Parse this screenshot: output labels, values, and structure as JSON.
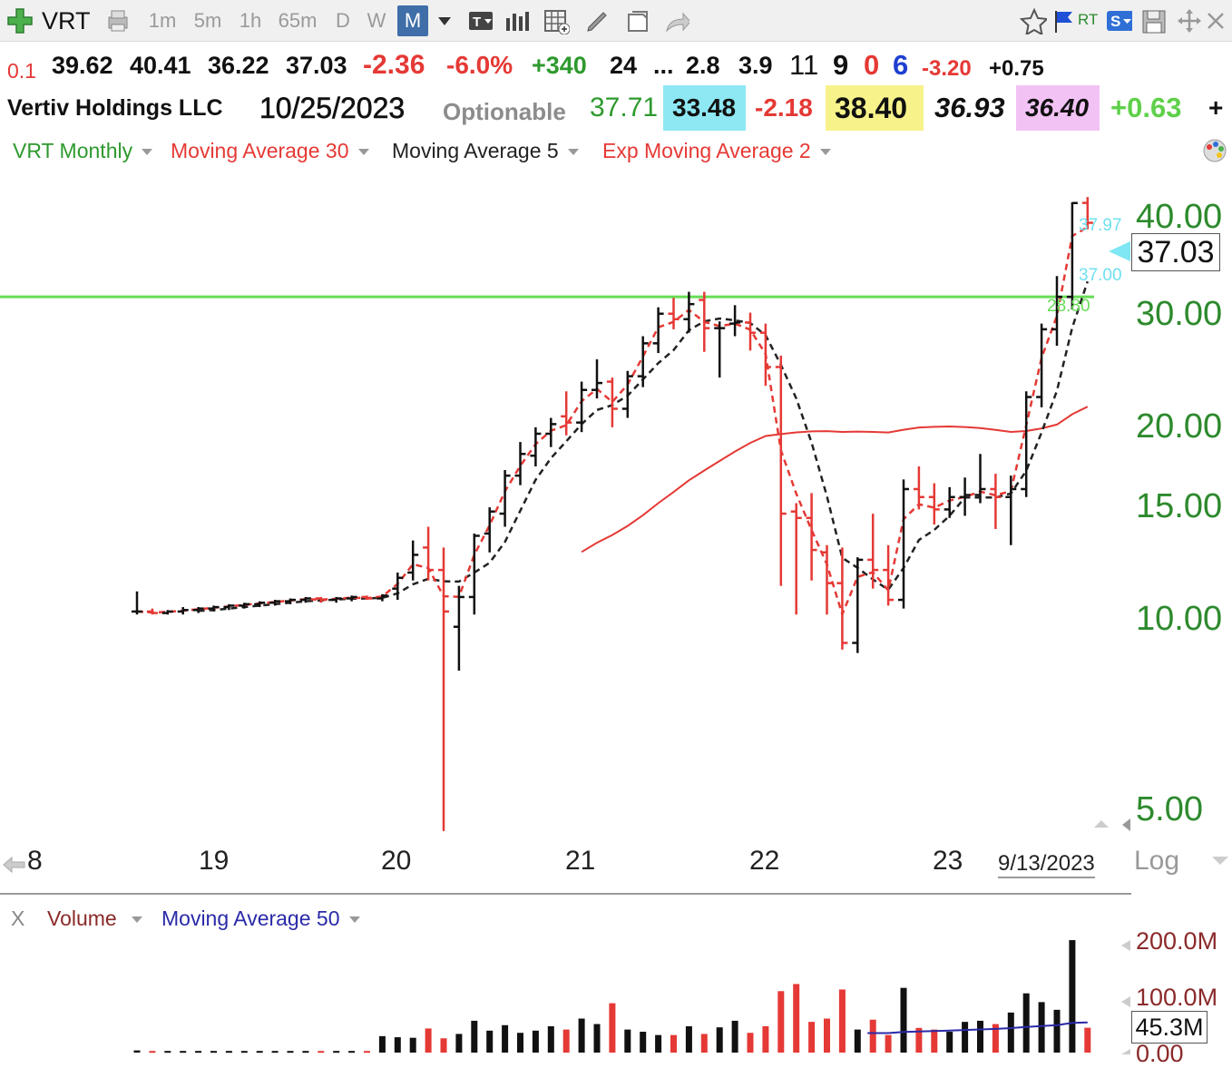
{
  "toolbar": {
    "symbol": "VRT",
    "intervals": [
      "1m",
      "5m",
      "1h",
      "65m",
      "D",
      "W",
      "M"
    ],
    "active_interval": "M",
    "rt_label": "RT",
    "s_label": "S"
  },
  "quote": {
    "row1": {
      "change_small": "0.1",
      "open": "39.62",
      "high": "40.41",
      "low": "36.22",
      "close": "37.03",
      "change": "-2.36",
      "change_pct": "-6.0%",
      "plus": "+340",
      "v1": "24",
      "ellipsis": "...",
      "v2": "2.8",
      "v3": "3.9",
      "v4": "11",
      "v5": "9",
      "v6": "0",
      "v7": "6",
      "v8": "-3.20",
      "v9": "+0.75"
    },
    "row2": {
      "name": "Vertiv Holdings LLC",
      "date": "10/25/2023",
      "optionable": "Optionable",
      "val1": "37.71",
      "val2": "33.48",
      "val3": "-2.18",
      "val4": "38.40",
      "val5": "36.93",
      "val6": "36.40",
      "val7": "+0.63",
      "plus": "+"
    },
    "colors": {
      "cyan_bg": "#8ee8f4",
      "yellow_bg": "#f7f28a",
      "pink_bg": "#f2c2f5"
    }
  },
  "legend": {
    "symbol_period": "VRT Monthly",
    "ma30": "Moving Average 30",
    "ma5": "Moving Average 5",
    "ema2": "Exp Moving Average 2"
  },
  "volume_legend": {
    "close": "X",
    "volume": "Volume",
    "ma50": "Moving Average 50"
  },
  "chart_data": {
    "type": "ohlc",
    "scale": "log",
    "ylim": [
      4.8,
      43
    ],
    "y_ticks": [
      "40.00",
      "30.00",
      "20.00",
      "15.00",
      "10.00",
      "5.00"
    ],
    "y_tick_values": [
      40,
      30,
      20,
      15,
      10,
      5
    ],
    "x_ticks": [
      "8",
      "19",
      "20",
      "21",
      "22",
      "23"
    ],
    "x_tick_index": [
      -5.3,
      4.7,
      16.7,
      28.7,
      40.7,
      52.7
    ],
    "last_date_label": "9/13/2023",
    "scale_label": "Log",
    "current_price": "37.03",
    "tags": {
      "high": "37.97",
      "low": "37.00",
      "line": "28.80"
    },
    "line_level": 28.8,
    "colors": {
      "up": "#111111",
      "down": "#e53935",
      "ma30": "#e53935",
      "ma5": "#222222",
      "ema2": "#e53935",
      "line": "#66dd55",
      "ma50vol": "#2a2aa8"
    },
    "bars": [
      {
        "o": 9.9,
        "h": 10.6,
        "l": 9.8,
        "c": 9.9,
        "v": 4
      },
      {
        "o": 9.9,
        "h": 10.0,
        "l": 9.8,
        "c": 9.85,
        "v": 3
      },
      {
        "o": 9.85,
        "h": 9.95,
        "l": 9.8,
        "c": 9.9,
        "v": 3
      },
      {
        "o": 9.9,
        "h": 10.05,
        "l": 9.8,
        "c": 9.95,
        "v": 3
      },
      {
        "o": 9.95,
        "h": 10.05,
        "l": 9.85,
        "c": 10.0,
        "v": 3
      },
      {
        "o": 10.0,
        "h": 10.1,
        "l": 9.9,
        "c": 10.05,
        "v": 3
      },
      {
        "o": 10.05,
        "h": 10.15,
        "l": 9.95,
        "c": 10.1,
        "v": 3
      },
      {
        "o": 10.1,
        "h": 10.2,
        "l": 10.0,
        "c": 10.15,
        "v": 3
      },
      {
        "o": 10.15,
        "h": 10.25,
        "l": 10.05,
        "c": 10.2,
        "v": 3
      },
      {
        "o": 10.2,
        "h": 10.3,
        "l": 10.1,
        "c": 10.25,
        "v": 3
      },
      {
        "o": 10.25,
        "h": 10.35,
        "l": 10.15,
        "c": 10.3,
        "v": 3
      },
      {
        "o": 10.3,
        "h": 10.4,
        "l": 10.2,
        "c": 10.35,
        "v": 3
      },
      {
        "o": 10.35,
        "h": 10.4,
        "l": 10.2,
        "c": 10.3,
        "v": 3
      },
      {
        "o": 10.3,
        "h": 10.4,
        "l": 10.2,
        "c": 10.35,
        "v": 3
      },
      {
        "o": 10.35,
        "h": 10.45,
        "l": 10.25,
        "c": 10.4,
        "v": 3
      },
      {
        "o": 10.4,
        "h": 10.45,
        "l": 10.3,
        "c": 10.35,
        "v": 3
      },
      {
        "o": 10.35,
        "h": 10.5,
        "l": 10.25,
        "c": 10.45,
        "v": 30
      },
      {
        "o": 10.7,
        "h": 11.3,
        "l": 10.3,
        "c": 11.1,
        "v": 28
      },
      {
        "o": 11.3,
        "h": 12.6,
        "l": 11.0,
        "c": 12.0,
        "v": 27
      },
      {
        "o": 12.3,
        "h": 13.2,
        "l": 11.0,
        "c": 11.4,
        "v": 44
      },
      {
        "o": 11.4,
        "h": 12.3,
        "l": 4.7,
        "c": 9.9,
        "v": 26
      },
      {
        "o": 9.4,
        "h": 10.8,
        "l": 8.1,
        "c": 10.4,
        "v": 34
      },
      {
        "o": 10.4,
        "h": 12.9,
        "l": 9.8,
        "c": 12.8,
        "v": 58
      },
      {
        "o": 12.9,
        "h": 14.1,
        "l": 12.1,
        "c": 13.9,
        "v": 40
      },
      {
        "o": 13.8,
        "h": 16.0,
        "l": 13.2,
        "c": 15.7,
        "v": 50
      },
      {
        "o": 15.7,
        "h": 17.6,
        "l": 15.2,
        "c": 16.9,
        "v": 36
      },
      {
        "o": 16.8,
        "h": 18.5,
        "l": 16.2,
        "c": 18.1,
        "v": 40
      },
      {
        "o": 18.1,
        "h": 19.1,
        "l": 17.3,
        "c": 18.7,
        "v": 48
      },
      {
        "o": 19.2,
        "h": 20.9,
        "l": 18.0,
        "c": 18.8,
        "v": 42
      },
      {
        "o": 18.8,
        "h": 21.6,
        "l": 18.2,
        "c": 21.0,
        "v": 62
      },
      {
        "o": 21.0,
        "h": 23.3,
        "l": 20.4,
        "c": 21.5,
        "v": 52
      },
      {
        "o": 21.6,
        "h": 21.9,
        "l": 18.5,
        "c": 19.7,
        "v": 90
      },
      {
        "o": 19.7,
        "h": 22.4,
        "l": 19.1,
        "c": 22.0,
        "v": 42
      },
      {
        "o": 22.0,
        "h": 25.2,
        "l": 21.2,
        "c": 24.6,
        "v": 38
      },
      {
        "o": 24.6,
        "h": 27.8,
        "l": 23.8,
        "c": 27.2,
        "v": 32
      },
      {
        "o": 27.2,
        "h": 28.7,
        "l": 25.8,
        "c": 26.7,
        "v": 32
      },
      {
        "o": 26.7,
        "h": 29.3,
        "l": 25.5,
        "c": 28.1,
        "v": 48
      },
      {
        "o": 28.5,
        "h": 29.3,
        "l": 23.9,
        "c": 25.9,
        "v": 34
      },
      {
        "o": 25.9,
        "h": 26.5,
        "l": 21.9,
        "c": 25.9,
        "v": 46
      },
      {
        "o": 26.3,
        "h": 28.0,
        "l": 25.2,
        "c": 26.4,
        "v": 58
      },
      {
        "o": 26.4,
        "h": 27.3,
        "l": 24.0,
        "c": 25.5,
        "v": 36
      },
      {
        "o": 25.5,
        "h": 26.3,
        "l": 21.3,
        "c": 22.7,
        "v": 48
      },
      {
        "o": 22.7,
        "h": 23.6,
        "l": 10.8,
        "c": 13.8,
        "v": 112
      },
      {
        "o": 13.9,
        "h": 14.3,
        "l": 9.8,
        "c": 13.6,
        "v": 125
      },
      {
        "o": 13.6,
        "h": 14.8,
        "l": 11.0,
        "c": 12.2,
        "v": 56
      },
      {
        "o": 12.1,
        "h": 12.4,
        "l": 9.8,
        "c": 10.9,
        "v": 62
      },
      {
        "o": 10.9,
        "h": 12.3,
        "l": 8.7,
        "c": 8.9,
        "v": 115
      },
      {
        "o": 8.9,
        "h": 11.9,
        "l": 8.6,
        "c": 11.8,
        "v": 42
      },
      {
        "o": 11.8,
        "h": 13.8,
        "l": 10.7,
        "c": 11.4,
        "v": 60
      },
      {
        "o": 11.4,
        "h": 12.4,
        "l": 10.1,
        "c": 10.3,
        "v": 32
      },
      {
        "o": 10.3,
        "h": 15.5,
        "l": 10.0,
        "c": 15.0,
        "v": 118
      },
      {
        "o": 15.0,
        "h": 16.2,
        "l": 14.0,
        "c": 14.6,
        "v": 45
      },
      {
        "o": 14.6,
        "h": 15.3,
        "l": 13.3,
        "c": 14.0,
        "v": 42
      },
      {
        "o": 14.0,
        "h": 15.1,
        "l": 13.6,
        "c": 14.6,
        "v": 38
      },
      {
        "o": 14.6,
        "h": 15.6,
        "l": 13.7,
        "c": 14.7,
        "v": 56
      },
      {
        "o": 14.7,
        "h": 16.9,
        "l": 14.3,
        "c": 15.0,
        "v": 58
      },
      {
        "o": 15.0,
        "h": 15.8,
        "l": 13.1,
        "c": 14.6,
        "v": 52
      },
      {
        "o": 14.6,
        "h": 15.7,
        "l": 12.4,
        "c": 15.0,
        "v": 73
      },
      {
        "o": 15.0,
        "h": 20.9,
        "l": 14.6,
        "c": 20.5,
        "v": 108
      },
      {
        "o": 20.5,
        "h": 26.3,
        "l": 19.8,
        "c": 25.8,
        "v": 92
      },
      {
        "o": 25.8,
        "h": 30.9,
        "l": 24.4,
        "c": 28.8,
        "v": 78
      },
      {
        "o": 28.8,
        "h": 39.7,
        "l": 27.6,
        "c": 39.6,
        "v": 205
      },
      {
        "o": 39.62,
        "h": 40.41,
        "l": 36.22,
        "c": 37.03,
        "v": 45.3
      }
    ],
    "volume": {
      "ticks": [
        "200.0M",
        "100.0M",
        "0.00"
      ],
      "tick_values": [
        200,
        100,
        0
      ],
      "current": "45.3M",
      "ylim": [
        0,
        215
      ],
      "unit": "M"
    }
  }
}
